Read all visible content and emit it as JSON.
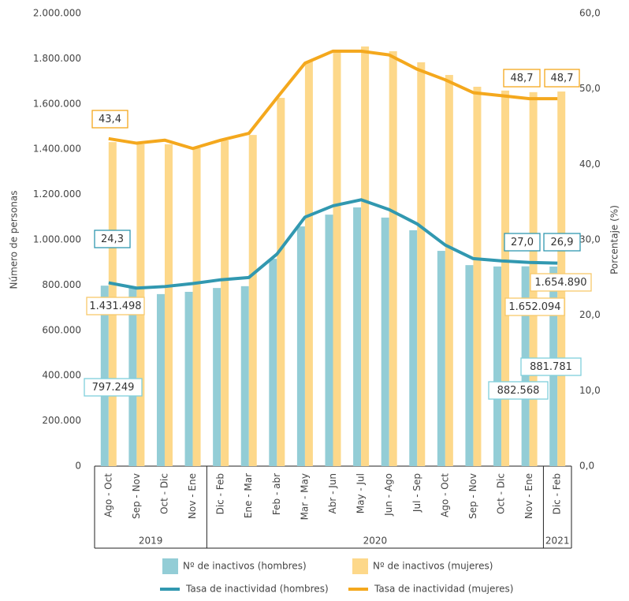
{
  "chart_data": {
    "type": "bar-line",
    "categories": [
      "Ago - Oct",
      "Sep - Nov",
      "Oct - Dic",
      "Nov - Ene",
      "Dic - Feb",
      "Ene - Mar",
      "Feb - abr",
      "Mar - May",
      "Abr - Jun",
      "May - Jul",
      "Jun - Ago",
      "Jul - Sep",
      "Ago - Oct",
      "Sep - Nov",
      "Oct - Dic",
      "Nov - Ene",
      "Dic - Feb"
    ],
    "year_groups": [
      {
        "label": "2019",
        "from": 0,
        "to": 3
      },
      {
        "label": "2020",
        "from": 4,
        "to": 15
      },
      {
        "label": "2021",
        "from": 16,
        "to": 16
      }
    ],
    "y_label": "Número de personas",
    "y2_label": "Porcentaje (%)",
    "ylim": [
      0,
      2000000
    ],
    "yticks": [
      0,
      {
        "value": 200000,
        "label": "200.000"
      },
      {
        "value": 400000,
        "label": "400.000"
      },
      {
        "value": 600000,
        "label": "600.000"
      },
      {
        "value": 800000,
        "label": "800.000"
      },
      {
        "value": 1000000,
        "label": "1.000.000"
      },
      {
        "value": 1200000,
        "label": "1.200.000"
      },
      {
        "value": 1400000,
        "label": "1.400.000"
      },
      {
        "value": 1600000,
        "label": "1.600.000"
      },
      {
        "value": 1800000,
        "label": "1.800.000"
      },
      {
        "value": 2000000,
        "label": "2.000.000"
      }
    ],
    "y2lim": [
      0,
      60
    ],
    "y2ticks": [
      {
        "value": 0,
        "label": "0,0"
      },
      {
        "value": 10,
        "label": "10,0"
      },
      {
        "value": 20,
        "label": "20,0"
      },
      {
        "value": 30,
        "label": "30,0"
      },
      {
        "value": 40,
        "label": "40,0"
      },
      {
        "value": 50,
        "label": "50,0"
      },
      {
        "value": 60,
        "label": "60,0"
      }
    ],
    "series": [
      {
        "name": "Nº de inactivos (hombres)",
        "kind": "bar",
        "color": "#93cdd6",
        "label_color": "#7fd0dc",
        "values": [
          797249,
          790000,
          760000,
          770000,
          787000,
          795000,
          916000,
          1059000,
          1111000,
          1143000,
          1098000,
          1042000,
          951000,
          888000,
          882000,
          882568,
          881781
        ],
        "value_labels": [
          "797.249",
          null,
          null,
          null,
          null,
          null,
          null,
          null,
          null,
          null,
          null,
          null,
          null,
          null,
          null,
          "882.568",
          "881.781"
        ]
      },
      {
        "name": "Nº de inactivos (mujeres)",
        "kind": "bar",
        "color": "#fdd88a",
        "label_color": "#f7c86b",
        "values": [
          1431498,
          1422000,
          1422000,
          1404000,
          1439000,
          1463000,
          1627000,
          1787000,
          1833000,
          1854000,
          1833000,
          1784000,
          1728000,
          1676000,
          1659000,
          1652094,
          1654890
        ],
        "value_labels": [
          "1.431.498",
          null,
          null,
          null,
          null,
          null,
          null,
          null,
          null,
          null,
          null,
          null,
          null,
          null,
          null,
          "1.652.094",
          "1.654.890"
        ]
      },
      {
        "name": "Tasa de inactividad (hombres)",
        "kind": "line",
        "axis": "y2",
        "color": "#3198b0",
        "label_color": "#3198b0",
        "values": [
          24.3,
          23.6,
          23.8,
          24.2,
          24.7,
          25.0,
          28.1,
          33.0,
          34.5,
          35.3,
          34.0,
          32.1,
          29.3,
          27.5,
          27.2,
          27.0,
          26.9
        ],
        "value_labels": [
          "24,3",
          null,
          null,
          null,
          null,
          null,
          null,
          null,
          null,
          null,
          null,
          null,
          null,
          null,
          null,
          "27,0",
          "26,9"
        ]
      },
      {
        "name": "Tasa de inactividad (mujeres)",
        "kind": "line",
        "axis": "y2",
        "color": "#f4a81d",
        "label_color": "#f4a81d",
        "values": [
          43.4,
          42.8,
          43.2,
          42.1,
          43.2,
          44.1,
          48.8,
          53.4,
          55.0,
          55.0,
          54.5,
          52.6,
          51.2,
          49.5,
          49.1,
          48.7,
          48.7
        ],
        "value_labels": [
          "43,4",
          null,
          null,
          null,
          null,
          null,
          null,
          null,
          null,
          null,
          null,
          null,
          null,
          null,
          null,
          "48,7",
          "48,7"
        ]
      }
    ]
  }
}
